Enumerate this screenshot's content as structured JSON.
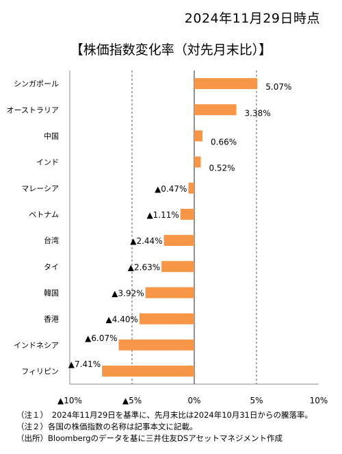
{
  "header": {
    "date": "2024年11月29日時点",
    "title": "【株価指数変化率（対先月末比）】"
  },
  "chart_data": {
    "type": "bar",
    "orientation": "horizontal",
    "categories": [
      "シンガポール",
      "オーストラリア",
      "中国",
      "インド",
      "マレーシア",
      "ベトナム",
      "台湾",
      "タイ",
      "韓国",
      "香港",
      "インドネシア",
      "フィリピン"
    ],
    "values": [
      5.07,
      3.38,
      0.66,
      0.52,
      -0.47,
      -1.11,
      -2.44,
      -2.63,
      -3.92,
      -4.4,
      -6.07,
      -7.41
    ],
    "value_labels": [
      "5.07%",
      "3.38%",
      "0.66%",
      "0.52%",
      "▲0.47%",
      "▲1.11%",
      "▲2.44%",
      "▲2.63%",
      "▲3.92%",
      "▲4.40%",
      "▲6.07%",
      "▲7.41%"
    ],
    "x_ticks": [
      -10,
      -5,
      0,
      5,
      10
    ],
    "x_tick_labels": [
      "▲10%",
      "▲5%",
      "0%",
      "5%",
      "10%"
    ],
    "xlim": [
      -10,
      10
    ],
    "bar_color": "#F79646",
    "grid": "dashed vertical at ±5%",
    "xlabel": "",
    "ylabel": ""
  },
  "notes": [
    "（注１）　2024年11月29日を基準に、先月末比は2024年10月31日からの騰落率。",
    "（注２）各国の株価指数の名称は記事本文に記載。",
    "（出所）Bloombergのデータを基に三井住友DSアセットマネジメント作成"
  ]
}
